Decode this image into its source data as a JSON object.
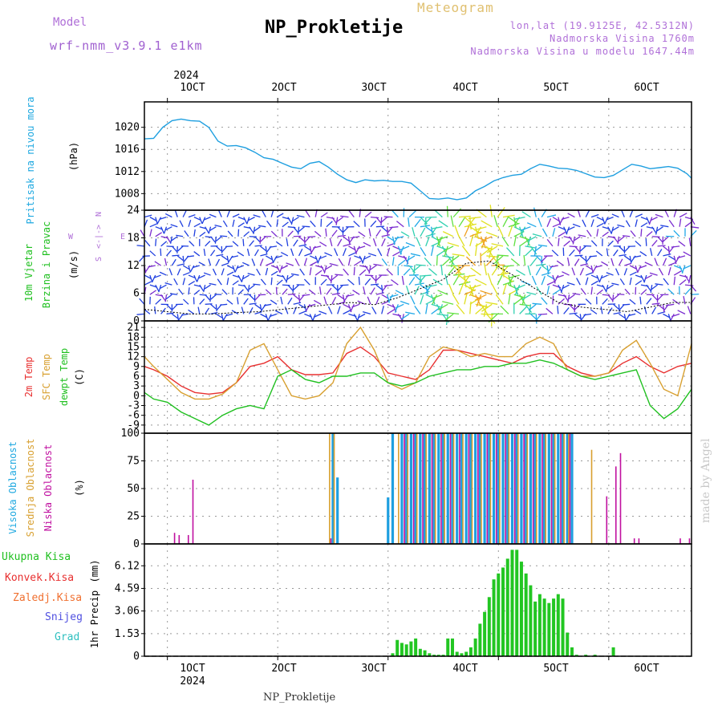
{
  "header": {
    "model_label": "Model",
    "model_value": "wrf-nmm_v3.9.1 e1km",
    "station": "NP_Prokletije",
    "meteogram_label": "Meteogram",
    "lonlat": "lon,lat (19.9125E, 42.5312N)",
    "altitude": "Nadmorska Visina 1760m",
    "model_altitude": "Nadmorska Visina u modelu 1647.44m"
  },
  "footer": {
    "station": "NP_Prokletije",
    "signature": "made by Angel"
  },
  "time_axis": {
    "year": "2024",
    "ticks": [
      "1OCT",
      "2OCT",
      "3OCT",
      "4OCT",
      "5OCT",
      "6OCT"
    ],
    "bottom_ticks": [
      "1OCT",
      "2OCT",
      "3OCT",
      "4OCT",
      "5OCT",
      "6OCT"
    ],
    "range_hours": [
      -5,
      114
    ]
  },
  "wind_legend": {
    "n": "N",
    "s": "S",
    "e": "E",
    "w": "W",
    "arrow": "<-|->"
  },
  "colors": {
    "pressure": "#1e9fe0",
    "temp2m": "#e83030",
    "sfc": "#d8a030",
    "dewpt": "#20c020",
    "high_cloud": "#1e9fe0",
    "mid_cloud": "#d8a030",
    "low_cloud": "#c010a0",
    "precip": "#22c622"
  },
  "chart_data": [
    {
      "type": "line",
      "title": "Pritisak na nivou mora",
      "ylabel": "(hPa)",
      "ylim": [
        1005,
        1024.6
      ],
      "yticks": [
        1008,
        1012,
        1016,
        1020
      ],
      "series": [
        {
          "name": "Pritisak na nivou mora",
          "color": "#1e9fe0",
          "x": [
            -5,
            -3,
            -1,
            1,
            3,
            5,
            7,
            9,
            11,
            13,
            15,
            17,
            19,
            21,
            23,
            25,
            27,
            29,
            31,
            33,
            35,
            37,
            39,
            41,
            43,
            45,
            47,
            49,
            51,
            53,
            55,
            57,
            59,
            61,
            63,
            65,
            67,
            69,
            71,
            73,
            75,
            77,
            79,
            81,
            83,
            85,
            87,
            89,
            91,
            93,
            95,
            97,
            99,
            101,
            103,
            105,
            107,
            109,
            111,
            113,
            114
          ],
          "y": [
            1017.9,
            1018,
            1020,
            1021.2,
            1021.5,
            1021.2,
            1021.1,
            1020,
            1017.5,
            1016.6,
            1016.7,
            1016.3,
            1015.5,
            1014.5,
            1014.2,
            1013.5,
            1012.8,
            1012.5,
            1013.5,
            1013.8,
            1012.8,
            1011.5,
            1010.5,
            1010,
            1010.5,
            1010.3,
            1010.4,
            1010.2,
            1010.2,
            1009.9,
            1008.5,
            1007.1,
            1007.0,
            1007.2,
            1006.9,
            1007.2,
            1008.5,
            1009.3,
            1010.3,
            1010.9,
            1011.3,
            1011.5,
            1012.5,
            1013.3,
            1013.0,
            1012.6,
            1012.5,
            1012.2,
            1011.6,
            1011.0,
            1010.9,
            1011.3,
            1012.3,
            1013.3,
            1013.0,
            1012.5,
            1012.7,
            1012.9,
            1012.6,
            1011.6,
            1010.8
          ]
        }
      ]
    },
    {
      "type": "line",
      "title": "10m Vjetar",
      "subtitle": "Brzina i Pravac",
      "ylabel": "(m/s)",
      "ylim": [
        0,
        24
      ],
      "yticks": [
        0,
        6,
        12,
        18,
        24
      ],
      "series": [
        {
          "name": "10m Vjetar",
          "color": "#000000",
          "x": [
            -5,
            0,
            5,
            10,
            15,
            20,
            25,
            30,
            35,
            40,
            45,
            50,
            55,
            60,
            65,
            70,
            75,
            80,
            85,
            90,
            95,
            100,
            105,
            110,
            114
          ],
          "y": [
            2.5,
            2,
            1.5,
            1.5,
            1.8,
            2,
            2.5,
            3,
            3.5,
            4,
            3.5,
            5,
            7,
            9,
            12.5,
            13,
            10,
            7,
            4,
            3,
            2.5,
            2,
            3,
            4,
            4
          ]
        }
      ]
    },
    {
      "type": "line",
      "ylabel": "(C)",
      "ylim": [
        -11.5,
        23
      ],
      "yticks": [
        -9,
        -6,
        -3,
        0,
        3,
        6,
        9,
        12,
        15,
        18,
        21
      ],
      "series": [
        {
          "name": "2m Temp",
          "color": "#e83030",
          "x": [
            -5,
            -3,
            0,
            3,
            6,
            9,
            12,
            15,
            18,
            21,
            24,
            27,
            30,
            33,
            36,
            39,
            42,
            45,
            48,
            51,
            54,
            57,
            60,
            63,
            66,
            69,
            72,
            75,
            78,
            81,
            84,
            87,
            90,
            93,
            96,
            99,
            102,
            105,
            108,
            111,
            114
          ],
          "y": [
            9,
            8,
            6,
            3,
            1,
            0.5,
            1,
            4,
            9,
            10,
            12,
            8,
            6.5,
            6.5,
            7,
            13,
            15,
            12,
            7,
            6,
            5,
            8,
            14,
            14,
            13,
            12,
            11,
            10,
            12,
            13,
            13,
            9,
            7,
            6,
            7,
            10,
            12,
            9,
            7,
            9,
            10
          ]
        },
        {
          "name": "SFC Temp",
          "color": "#d8a030",
          "x": [
            -5,
            -3,
            0,
            3,
            6,
            9,
            12,
            15,
            18,
            21,
            24,
            27,
            30,
            33,
            36,
            39,
            42,
            45,
            48,
            51,
            54,
            57,
            60,
            63,
            66,
            69,
            72,
            75,
            78,
            81,
            84,
            87,
            90,
            93,
            96,
            99,
            102,
            105,
            108,
            111,
            114
          ],
          "y": [
            12,
            9,
            5,
            1,
            -1,
            -1,
            0.5,
            4,
            14,
            16,
            8,
            0,
            -1,
            0,
            4,
            16,
            21,
            14,
            4,
            2,
            4,
            12,
            15,
            14,
            12,
            13,
            12,
            12,
            16,
            18,
            16,
            8,
            6,
            6,
            7,
            14,
            17,
            10,
            2,
            0,
            16
          ]
        },
        {
          "name": "dewpt Temp",
          "color": "#20c020",
          "x": [
            -5,
            -3,
            0,
            3,
            6,
            9,
            12,
            15,
            18,
            21,
            24,
            27,
            30,
            33,
            36,
            39,
            42,
            45,
            48,
            51,
            54,
            57,
            60,
            63,
            66,
            69,
            72,
            75,
            78,
            81,
            84,
            87,
            90,
            93,
            96,
            99,
            102,
            105,
            108,
            111,
            114
          ],
          "y": [
            1,
            -1,
            -2,
            -5,
            -7,
            -9,
            -6,
            -4,
            -3,
            -4,
            6,
            8,
            5,
            4,
            6,
            6,
            7,
            7,
            4,
            3,
            4,
            6,
            7,
            8,
            8,
            9,
            9,
            10,
            10,
            11,
            10,
            8,
            6,
            5,
            6,
            7,
            8,
            -3,
            -7,
            -4,
            2
          ]
        }
      ]
    },
    {
      "type": "bar",
      "ylabel": "(%)",
      "ylim": [
        0,
        100
      ],
      "yticks": [
        0,
        25,
        50,
        75,
        100
      ],
      "series": [
        {
          "name": "Visoka Oblacnost",
          "color": "#1e9fe0",
          "x": [
            36,
            37,
            48,
            49,
            51,
            52,
            53,
            54,
            55,
            56,
            57,
            58,
            59,
            60,
            61,
            62,
            63,
            64,
            65,
            66,
            67,
            68,
            69,
            70,
            71,
            72,
            73,
            74,
            75,
            76,
            77,
            78,
            79,
            80,
            81,
            82,
            83,
            84,
            85,
            86,
            87,
            88
          ],
          "values": [
            100,
            60,
            42,
            100,
            100,
            100,
            100,
            100,
            100,
            100,
            100,
            100,
            100,
            100,
            100,
            100,
            100,
            100,
            100,
            100,
            100,
            100,
            100,
            100,
            100,
            100,
            100,
            100,
            100,
            100,
            100,
            100,
            100,
            100,
            100,
            100,
            100,
            100,
            100,
            100,
            100,
            100
          ]
        },
        {
          "name": "Srednja Oblacnost",
          "color": "#d8a030",
          "x": [
            35,
            36,
            50,
            52,
            54,
            56,
            58,
            60,
            62,
            64,
            66,
            68,
            70,
            72,
            74,
            76,
            78,
            80,
            82,
            84,
            86,
            87,
            92
          ],
          "values": [
            100,
            100,
            100,
            100,
            100,
            100,
            100,
            100,
            100,
            100,
            100,
            100,
            100,
            100,
            100,
            100,
            100,
            100,
            100,
            100,
            100,
            100,
            85
          ]
        },
        {
          "name": "Niska Oblacnost",
          "color": "#c010a0",
          "x": [
            1,
            2,
            4,
            5,
            35,
            51,
            53,
            55,
            57,
            59,
            61,
            63,
            65,
            67,
            69,
            71,
            73,
            75,
            77,
            79,
            81,
            83,
            85,
            87,
            95,
            97,
            98,
            101,
            102,
            111,
            113
          ],
          "values": [
            10,
            8,
            8,
            58,
            5,
            100,
            100,
            100,
            100,
            100,
            100,
            100,
            100,
            100,
            100,
            100,
            100,
            100,
            100,
            100,
            100,
            100,
            100,
            100,
            43,
            70,
            82,
            5,
            5,
            5,
            5
          ]
        }
      ]
    },
    {
      "type": "bar",
      "title": "1hr Precip",
      "ylabel": "(mm)",
      "ylim": [
        0,
        7.6
      ],
      "yticks": [
        0,
        1.53,
        3.06,
        4.59,
        6.12
      ],
      "legend": [
        "Ukupna Kisa",
        "Konvek.Kisa",
        "Zaledj.Kisa",
        "Snijeg",
        "Grad"
      ],
      "series": [
        {
          "name": "Ukupna Kisa",
          "color": "#22c622",
          "x": [
            49,
            50,
            51,
            52,
            53,
            54,
            55,
            56,
            57,
            58,
            59,
            60,
            61,
            62,
            63,
            64,
            65,
            66,
            67,
            68,
            69,
            70,
            71,
            72,
            73,
            74,
            75,
            76,
            77,
            78,
            79,
            80,
            81,
            82,
            83,
            84,
            85,
            86,
            87,
            88,
            89,
            91,
            93,
            97
          ],
          "values": [
            0.2,
            1.1,
            0.9,
            0.8,
            1.0,
            1.2,
            0.5,
            0.4,
            0.2,
            0.1,
            0.1,
            0.1,
            1.2,
            1.2,
            0.3,
            0.2,
            0.3,
            0.6,
            1.2,
            2.2,
            3.0,
            4.0,
            5.2,
            5.6,
            6.0,
            6.6,
            7.2,
            7.2,
            6.4,
            5.6,
            4.8,
            3.7,
            4.2,
            3.9,
            3.6,
            3.9,
            4.2,
            3.9,
            1.6,
            0.6,
            0.1,
            0.1,
            0.1,
            0.6
          ]
        }
      ]
    }
  ]
}
